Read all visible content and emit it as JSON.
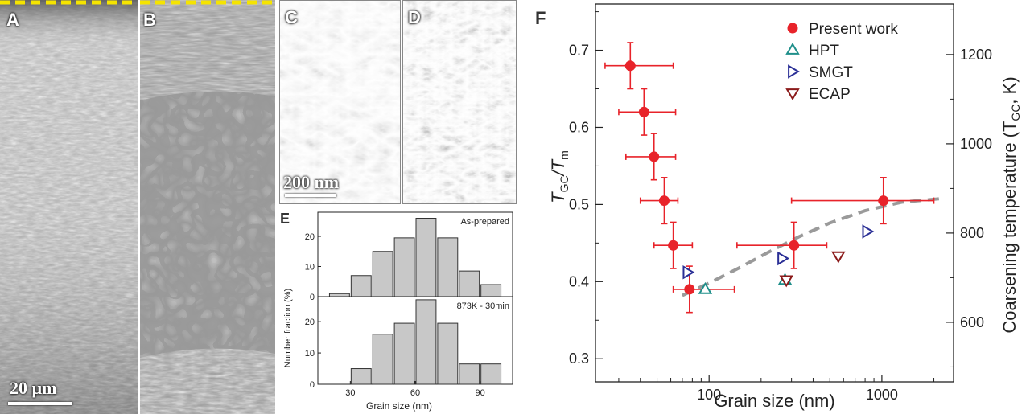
{
  "panels": {
    "A": {
      "label": "A",
      "scale_bar": "20 µm"
    },
    "B": {
      "label": "B"
    },
    "C": {
      "label": "C",
      "scale_bar": "200 nm"
    },
    "D": {
      "label": "D"
    },
    "E": {
      "label": "E"
    },
    "F": {
      "label": "F"
    }
  },
  "colors": {
    "present": "#e8232a",
    "hpt": "#1f8f8a",
    "smgt": "#2a2f96",
    "ecap": "#8b1a1a",
    "fit": "#9a9a9a",
    "bars": "#c8c8c8",
    "dash_yellow": "#f5e400"
  },
  "chart_data": [
    {
      "type": "bar",
      "panel": "E",
      "title": "As-prepared",
      "categories": [
        25,
        35,
        45,
        55,
        65,
        75,
        85,
        95
      ],
      "values": [
        1,
        7,
        15,
        19.5,
        26,
        19.5,
        8.5,
        4
      ],
      "ylim": [
        0,
        28
      ],
      "yticks": [
        "0",
        "10",
        "20"
      ],
      "ylabel": "Number fraction (%)"
    },
    {
      "type": "bar",
      "panel": "E",
      "title": "873K - 30min",
      "categories": [
        35,
        45,
        55,
        65,
        75,
        85,
        95
      ],
      "values": [
        5,
        16,
        19.5,
        27,
        19.5,
        6.5,
        6.5
      ],
      "ylim": [
        0,
        28
      ],
      "yticks": [
        "0",
        "10",
        "20"
      ],
      "xticks": [
        "30",
        "60",
        "90"
      ],
      "xlim": [
        15,
        105
      ],
      "xlabel": "Grain size (nm)"
    },
    {
      "type": "scatter",
      "panel": "F",
      "xscale": "log",
      "xlim": [
        22,
        2600
      ],
      "ylim": [
        0.27,
        0.76
      ],
      "xticks": [
        "100",
        "1000"
      ],
      "yticks": [
        "0.3",
        "0.4",
        "0.5",
        "0.6",
        "0.7"
      ],
      "y2ticks": [
        "600",
        "800",
        "1000",
        "1200"
      ],
      "xlabel": "Grain size (nm)",
      "ylabel_main": "T",
      "ylabel_sub1": "GC",
      "ylabel_mid": "/T",
      "ylabel_sub2": "m",
      "y2label_main": "Coarsening temperature (T",
      "y2label_sub": "GC",
      "y2label_end": ", K)",
      "tm_kelvin": 1728,
      "series": [
        {
          "name": "Present work",
          "marker": "circle",
          "points": [
            {
              "x": 35,
              "y": 0.68,
              "xerr": [
                25,
                62
              ],
              "yerr": 0.03
            },
            {
              "x": 42,
              "y": 0.62,
              "xerr": [
                30,
                64
              ],
              "yerr": 0.03
            },
            {
              "x": 48,
              "y": 0.562,
              "xerr": [
                33,
                64
              ],
              "yerr": 0.03
            },
            {
              "x": 55,
              "y": 0.505,
              "xerr": [
                40,
                66
              ],
              "yerr": 0.03
            },
            {
              "x": 62,
              "y": 0.447,
              "xerr": [
                48,
                80
              ],
              "yerr": 0.03
            },
            {
              "x": 77,
              "y": 0.39,
              "xerr": [
                62,
                140
              ],
              "yerr": 0.03
            },
            {
              "x": 310,
              "y": 0.447,
              "xerr": [
                145,
                480
              ],
              "yerr": 0.03
            },
            {
              "x": 1020,
              "y": 0.505,
              "xerr": [
                300,
                2000
              ],
              "yerr": 0.03
            }
          ]
        },
        {
          "name": "HPT",
          "marker": "triangle-up",
          "points": [
            {
              "x": 95,
              "y": 0.39
            },
            {
              "x": 275,
              "y": 0.402
            }
          ]
        },
        {
          "name": "SMGT",
          "marker": "triangle-right",
          "points": [
            {
              "x": 75,
              "y": 0.412
            },
            {
              "x": 265,
              "y": 0.43
            },
            {
              "x": 820,
              "y": 0.465
            }
          ]
        },
        {
          "name": "ECAP",
          "marker": "triangle-down",
          "points": [
            {
              "x": 280,
              "y": 0.402
            },
            {
              "x": 560,
              "y": 0.433
            }
          ]
        }
      ],
      "fit": [
        [
          70,
          0.382
        ],
        [
          100,
          0.398
        ],
        [
          150,
          0.418
        ],
        [
          220,
          0.438
        ],
        [
          330,
          0.458
        ],
        [
          500,
          0.476
        ],
        [
          800,
          0.492
        ],
        [
          1300,
          0.503
        ],
        [
          2300,
          0.508
        ]
      ]
    }
  ]
}
